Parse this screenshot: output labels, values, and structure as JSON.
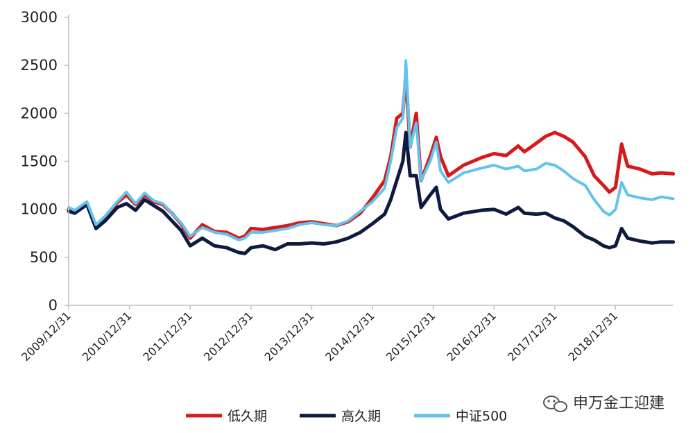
{
  "chart_data": {
    "type": "line",
    "title": "",
    "xlabel": "",
    "ylabel": "",
    "ylim": [
      0,
      3000
    ],
    "yticks": [
      0,
      500,
      1000,
      1500,
      2000,
      2500,
      3000
    ],
    "xticks": [
      "2009/12/31",
      "2010/12/31",
      "2011/12/31",
      "2012/12/31",
      "2013/12/31",
      "2014/12/31",
      "2015/12/31",
      "2016/12/31",
      "2017/12/31",
      "2018/12/31"
    ],
    "x_end": 9.95,
    "grid": false,
    "legend_position": "bottom",
    "series": [
      {
        "name": "低久期",
        "color": "#d7191c",
        "points": [
          [
            0,
            1000
          ],
          [
            0.1,
            980
          ],
          [
            0.3,
            1060
          ],
          [
            0.45,
            820
          ],
          [
            0.6,
            920
          ],
          [
            0.8,
            1070
          ],
          [
            0.95,
            1150
          ],
          [
            1.1,
            1050
          ],
          [
            1.25,
            1150
          ],
          [
            1.4,
            1080
          ],
          [
            1.55,
            1050
          ],
          [
            1.7,
            960
          ],
          [
            1.85,
            850
          ],
          [
            2.0,
            700
          ],
          [
            2.2,
            840
          ],
          [
            2.4,
            770
          ],
          [
            2.6,
            760
          ],
          [
            2.8,
            700
          ],
          [
            2.9,
            720
          ],
          [
            3.0,
            800
          ],
          [
            3.2,
            790
          ],
          [
            3.4,
            810
          ],
          [
            3.6,
            830
          ],
          [
            3.8,
            860
          ],
          [
            4.0,
            870
          ],
          [
            4.2,
            850
          ],
          [
            4.4,
            830
          ],
          [
            4.6,
            870
          ],
          [
            4.8,
            960
          ],
          [
            5.0,
            1120
          ],
          [
            5.2,
            1300
          ],
          [
            5.3,
            1550
          ],
          [
            5.4,
            1950
          ],
          [
            5.5,
            2000
          ],
          [
            5.55,
            2400
          ],
          [
            5.62,
            1650
          ],
          [
            5.72,
            2000
          ],
          [
            5.8,
            1300
          ],
          [
            5.95,
            1550
          ],
          [
            6.05,
            1750
          ],
          [
            6.12,
            1550
          ],
          [
            6.25,
            1350
          ],
          [
            6.5,
            1460
          ],
          [
            6.8,
            1540
          ],
          [
            7.0,
            1580
          ],
          [
            7.2,
            1560
          ],
          [
            7.4,
            1660
          ],
          [
            7.5,
            1600
          ],
          [
            7.7,
            1690
          ],
          [
            7.85,
            1760
          ],
          [
            8.0,
            1800
          ],
          [
            8.15,
            1760
          ],
          [
            8.3,
            1700
          ],
          [
            8.5,
            1550
          ],
          [
            8.65,
            1350
          ],
          [
            8.8,
            1250
          ],
          [
            8.9,
            1180
          ],
          [
            9.0,
            1230
          ],
          [
            9.1,
            1680
          ],
          [
            9.2,
            1450
          ],
          [
            9.4,
            1420
          ],
          [
            9.6,
            1370
          ],
          [
            9.75,
            1380
          ],
          [
            9.95,
            1370
          ]
        ]
      },
      {
        "name": "高久期",
        "color": "#0d1b3e",
        "points": [
          [
            0,
            980
          ],
          [
            0.1,
            960
          ],
          [
            0.3,
            1050
          ],
          [
            0.45,
            800
          ],
          [
            0.6,
            880
          ],
          [
            0.8,
            1020
          ],
          [
            0.95,
            1060
          ],
          [
            1.1,
            990
          ],
          [
            1.25,
            1100
          ],
          [
            1.4,
            1040
          ],
          [
            1.55,
            980
          ],
          [
            1.7,
            880
          ],
          [
            1.85,
            780
          ],
          [
            2.0,
            620
          ],
          [
            2.2,
            700
          ],
          [
            2.4,
            620
          ],
          [
            2.6,
            600
          ],
          [
            2.8,
            550
          ],
          [
            2.9,
            540
          ],
          [
            3.0,
            600
          ],
          [
            3.2,
            620
          ],
          [
            3.4,
            580
          ],
          [
            3.6,
            640
          ],
          [
            3.8,
            640
          ],
          [
            4.0,
            650
          ],
          [
            4.2,
            640
          ],
          [
            4.4,
            660
          ],
          [
            4.6,
            700
          ],
          [
            4.8,
            760
          ],
          [
            5.0,
            850
          ],
          [
            5.2,
            950
          ],
          [
            5.3,
            1100
          ],
          [
            5.4,
            1300
          ],
          [
            5.5,
            1500
          ],
          [
            5.55,
            1800
          ],
          [
            5.62,
            1350
          ],
          [
            5.72,
            1350
          ],
          [
            5.8,
            1020
          ],
          [
            5.95,
            1150
          ],
          [
            6.05,
            1230
          ],
          [
            6.12,
            1000
          ],
          [
            6.25,
            900
          ],
          [
            6.5,
            960
          ],
          [
            6.8,
            990
          ],
          [
            7.0,
            1000
          ],
          [
            7.2,
            950
          ],
          [
            7.4,
            1020
          ],
          [
            7.5,
            960
          ],
          [
            7.7,
            950
          ],
          [
            7.85,
            960
          ],
          [
            8.0,
            910
          ],
          [
            8.15,
            880
          ],
          [
            8.3,
            820
          ],
          [
            8.5,
            720
          ],
          [
            8.65,
            680
          ],
          [
            8.8,
            620
          ],
          [
            8.9,
            600
          ],
          [
            9.0,
            620
          ],
          [
            9.1,
            800
          ],
          [
            9.2,
            700
          ],
          [
            9.4,
            670
          ],
          [
            9.6,
            650
          ],
          [
            9.75,
            660
          ],
          [
            9.95,
            660
          ]
        ]
      },
      {
        "name": "中证500",
        "color": "#62c4ea",
        "points": [
          [
            0,
            1020
          ],
          [
            0.1,
            990
          ],
          [
            0.3,
            1080
          ],
          [
            0.45,
            840
          ],
          [
            0.6,
            930
          ],
          [
            0.8,
            1080
          ],
          [
            0.95,
            1180
          ],
          [
            1.1,
            1060
          ],
          [
            1.25,
            1170
          ],
          [
            1.4,
            1090
          ],
          [
            1.55,
            1060
          ],
          [
            1.7,
            960
          ],
          [
            1.85,
            860
          ],
          [
            2.0,
            720
          ],
          [
            2.2,
            810
          ],
          [
            2.4,
            760
          ],
          [
            2.6,
            740
          ],
          [
            2.8,
            680
          ],
          [
            2.9,
            700
          ],
          [
            3.0,
            760
          ],
          [
            3.2,
            760
          ],
          [
            3.4,
            780
          ],
          [
            3.6,
            800
          ],
          [
            3.8,
            840
          ],
          [
            4.0,
            860
          ],
          [
            4.2,
            840
          ],
          [
            4.4,
            830
          ],
          [
            4.6,
            880
          ],
          [
            4.8,
            980
          ],
          [
            5.0,
            1080
          ],
          [
            5.2,
            1220
          ],
          [
            5.3,
            1500
          ],
          [
            5.4,
            1850
          ],
          [
            5.5,
            1950
          ],
          [
            5.55,
            2550
          ],
          [
            5.62,
            1650
          ],
          [
            5.72,
            1900
          ],
          [
            5.8,
            1300
          ],
          [
            5.95,
            1500
          ],
          [
            6.05,
            1700
          ],
          [
            6.12,
            1400
          ],
          [
            6.25,
            1280
          ],
          [
            6.5,
            1380
          ],
          [
            6.8,
            1430
          ],
          [
            7.0,
            1460
          ],
          [
            7.2,
            1420
          ],
          [
            7.4,
            1450
          ],
          [
            7.5,
            1400
          ],
          [
            7.7,
            1420
          ],
          [
            7.85,
            1480
          ],
          [
            8.0,
            1460
          ],
          [
            8.15,
            1400
          ],
          [
            8.3,
            1320
          ],
          [
            8.5,
            1250
          ],
          [
            8.65,
            1100
          ],
          [
            8.8,
            980
          ],
          [
            8.9,
            940
          ],
          [
            9.0,
            1000
          ],
          [
            9.1,
            1280
          ],
          [
            9.2,
            1150
          ],
          [
            9.4,
            1120
          ],
          [
            9.6,
            1100
          ],
          [
            9.75,
            1130
          ],
          [
            9.95,
            1110
          ]
        ]
      }
    ]
  },
  "watermark": {
    "text": "申万金工迎建",
    "icon": "wechat-icon"
  }
}
